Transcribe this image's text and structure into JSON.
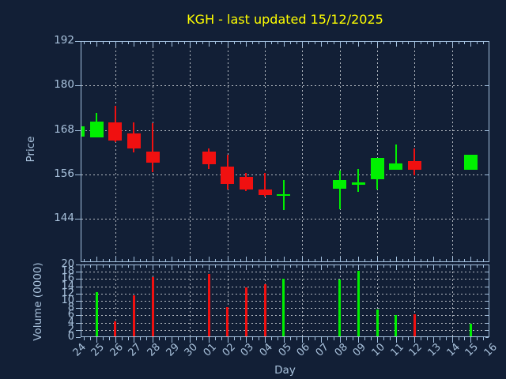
{
  "title": {
    "text": "KGH - last updated 15/12/2025"
  },
  "price_panel": {
    "ylabel": "Price",
    "yticks": [
      192,
      180,
      168,
      156,
      144
    ]
  },
  "volume_panel": {
    "ylabel": "Volume (0000)",
    "yticks": [
      20,
      18,
      16,
      14,
      12,
      10,
      8,
      6,
      4,
      2,
      0
    ]
  },
  "x_axis": {
    "label": "Day",
    "ticks": [
      "24",
      "25",
      "26",
      "27",
      "28",
      "29",
      "30",
      "01",
      "02",
      "03",
      "04",
      "05",
      "06",
      "07",
      "08",
      "09",
      "10",
      "11",
      "12",
      "13",
      "14",
      "15",
      "16"
    ]
  },
  "colors": {
    "background": "#121f36",
    "frame": "#a3c0de",
    "text": "#a9c2dc",
    "grid": "#ced3d8",
    "title": "#ffff00",
    "up": "#00f000",
    "down": "#f01010"
  },
  "chart_data": {
    "type": "candlestick",
    "title": "KGH - last updated 15/12/2025",
    "xlabel": "Day",
    "ylabel": "Price",
    "ylabel2": "Volume (0000)",
    "x_categories": [
      "24",
      "25",
      "26",
      "27",
      "28",
      "29",
      "30",
      "01",
      "02",
      "03",
      "04",
      "05",
      "06",
      "07",
      "08",
      "09",
      "10",
      "11",
      "12",
      "13",
      "14",
      "15",
      "16"
    ],
    "price_ylim": [
      132.3,
      192
    ],
    "price_ticks": [
      144,
      156,
      168,
      180,
      192
    ],
    "volume_ylim": [
      0,
      20
    ],
    "volume_ticks": [
      0,
      2,
      4,
      6,
      8,
      10,
      12,
      14,
      16,
      18,
      20
    ],
    "grid": "dashed; vertical every 2 days, horizontal every price/volume tick",
    "legend_position": "none",
    "candles": [
      {
        "day": "24",
        "open": 166.2,
        "high": 168.9,
        "low": 166.2,
        "close": 168.9,
        "dir": "up",
        "volume": null
      },
      {
        "day": "25",
        "open": 166.0,
        "high": 172.6,
        "low": 166.0,
        "close": 170.3,
        "dir": "up",
        "volume": 12.5
      },
      {
        "day": "26",
        "open": 170.0,
        "high": 174.5,
        "low": 164.6,
        "close": 165.2,
        "dir": "down",
        "volume": 4.3
      },
      {
        "day": "27",
        "open": 167.1,
        "high": 170.1,
        "low": 161.9,
        "close": 162.9,
        "dir": "down",
        "volume": 11.6
      },
      {
        "day": "28",
        "open": 162.2,
        "high": 169.9,
        "low": 156.7,
        "close": 159.2,
        "dir": "down",
        "volume": 16.6
      },
      {
        "day": "01",
        "open": 162.2,
        "high": 163.0,
        "low": 157.5,
        "close": 158.7,
        "dir": "down",
        "volume": 17.4
      },
      {
        "day": "02",
        "open": 158.0,
        "high": 161.2,
        "low": 151.9,
        "close": 153.3,
        "dir": "down",
        "volume": 8.2
      },
      {
        "day": "03",
        "open": 155.3,
        "high": 156.3,
        "low": 151.4,
        "close": 152.0,
        "dir": "down",
        "volume": 13.6
      },
      {
        "day": "04",
        "open": 152.0,
        "high": 156.4,
        "low": 150.0,
        "close": 150.5,
        "dir": "down",
        "volume": 14.5
      },
      {
        "day": "05",
        "open": 150.6,
        "high": 154.4,
        "low": 146.3,
        "close": 150.7,
        "dir": "up",
        "volume": 16.0
      },
      {
        "day": "08",
        "open": 152.1,
        "high": 157.0,
        "low": 146.6,
        "close": 154.5,
        "dir": "up",
        "volume": 15.9
      },
      {
        "day": "09",
        "open": 153.7,
        "high": 157.4,
        "low": 151.2,
        "close": 153.8,
        "dir": "up",
        "volume": 18.2
      },
      {
        "day": "10",
        "open": 154.7,
        "high": 160.5,
        "low": 152.0,
        "close": 160.5,
        "dir": "up",
        "volume": 7.7
      },
      {
        "day": "11",
        "open": 157.3,
        "high": 164.1,
        "low": 157.3,
        "close": 159.0,
        "dir": "up",
        "volume": 6.0
      },
      {
        "day": "12",
        "open": 159.5,
        "high": 162.9,
        "low": 155.8,
        "close": 157.2,
        "dir": "down",
        "volume": 6.2
      },
      {
        "day": "15",
        "open": 157.2,
        "high": 161.3,
        "low": 157.2,
        "close": 161.3,
        "dir": "up",
        "volume": 3.6
      }
    ]
  }
}
